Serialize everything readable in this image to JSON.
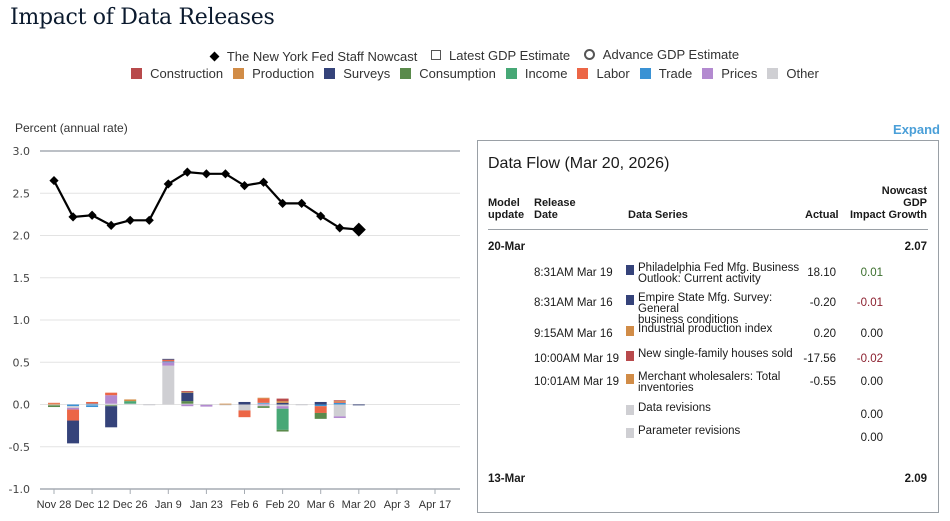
{
  "page": {
    "title": "Impact of Data Releases",
    "expand_label": "Expand"
  },
  "legend": {
    "markers": [
      {
        "label": "The New York Fed Staff Nowcast",
        "icon": "diamond-icon"
      },
      {
        "label": "Latest GDP Estimate",
        "icon": "square-outline-icon"
      },
      {
        "label": "Advance GDP Estimate",
        "icon": "circle-outline-icon"
      }
    ],
    "categories": [
      {
        "label": "Construction",
        "color": "#b84a4c"
      },
      {
        "label": "Production",
        "color": "#d18c47"
      },
      {
        "label": "Surveys",
        "color": "#35437a"
      },
      {
        "label": "Consumption",
        "color": "#5a8a4b"
      },
      {
        "label": "Income",
        "color": "#47a876"
      },
      {
        "label": "Labor",
        "color": "#ec6646"
      },
      {
        "label": "Trade",
        "color": "#3a92d4"
      },
      {
        "label": "Prices",
        "color": "#b38ad0"
      },
      {
        "label": "Other",
        "color": "#cfcfd3"
      }
    ]
  },
  "chart_data": {
    "type": "bar",
    "title": "Impact of Data Releases",
    "ylabel": "Percent (annual rate)",
    "xlabel": "",
    "ylim": [
      -1.0,
      3.0
    ],
    "yticks": [
      "3.0",
      "2.5",
      "2.0",
      "1.5",
      "1.0",
      "0.5",
      "0.0",
      "-0.5",
      "-1.0"
    ],
    "ytick_values": [
      3.0,
      2.5,
      2.0,
      1.5,
      1.0,
      0.5,
      0.0,
      -0.5,
      -1.0
    ],
    "grid": true,
    "xticks": [
      "Nov 28",
      "Dec 12",
      "Dec 26",
      "Jan 9",
      "Jan 23",
      "Feb 6",
      "Feb 20",
      "Mar 6",
      "Mar 20",
      "Apr 3",
      "Apr 17"
    ],
    "weeks": [
      "Nov 28",
      "Dec 5",
      "Dec 12",
      "Dec 19",
      "Dec 26",
      "Jan 2",
      "Jan 9",
      "Jan 16",
      "Jan 23",
      "Jan 30",
      "Feb 6",
      "Feb 13",
      "Feb 20",
      "Feb 27",
      "Mar 6",
      "Mar 13",
      "Mar 20",
      "Mar 27",
      "Apr 3",
      "Apr 10",
      "Apr 17"
    ],
    "nowcast": {
      "name": "The New York Fed Staff Nowcast",
      "values": [
        2.65,
        2.22,
        2.24,
        2.12,
        2.18,
        2.18,
        2.61,
        2.75,
        2.73,
        2.73,
        2.59,
        2.63,
        2.38,
        2.38,
        2.23,
        2.09,
        2.07
      ]
    },
    "stacks": [
      {
        "week": "Nov 28",
        "pos": [
          [
            "Production",
            0.01
          ],
          [
            "Labor",
            0.01
          ]
        ],
        "neg": [
          [
            "Other",
            -0.01
          ],
          [
            "Consumption",
            -0.02
          ]
        ]
      },
      {
        "week": "Dec 5",
        "pos": [],
        "neg": [
          [
            "Trade",
            -0.02
          ],
          [
            "Other",
            -0.02
          ],
          [
            "Prices",
            -0.02
          ],
          [
            "Labor",
            -0.13
          ],
          [
            "Surveys",
            -0.27
          ]
        ]
      },
      {
        "week": "Dec 12",
        "pos": [
          [
            "Trade",
            0.01
          ],
          [
            "Labor",
            0.02
          ]
        ],
        "neg": [
          [
            "Other",
            -0.01
          ],
          [
            "Trade",
            -0.02
          ]
        ]
      },
      {
        "week": "Dec 19",
        "pos": [
          [
            "Other",
            0.01
          ],
          [
            "Prices",
            0.1
          ],
          [
            "Labor",
            0.03
          ]
        ],
        "neg": [
          [
            "Other",
            -0.01
          ],
          [
            "Consumption",
            -0.01
          ],
          [
            "Surveys",
            -0.25
          ]
        ]
      },
      {
        "week": "Dec 26",
        "pos": [
          [
            "Other",
            0.01
          ],
          [
            "Income",
            0.03
          ],
          [
            "Production",
            0.02
          ]
        ],
        "neg": []
      },
      {
        "week": "Jan 2",
        "pos": [
          [
            "Other",
            0.005
          ]
        ],
        "neg": [
          [
            "Other",
            -0.005
          ]
        ]
      },
      {
        "week": "Jan 9",
        "pos": [
          [
            "Other",
            0.46
          ],
          [
            "Prices",
            0.04
          ],
          [
            "Trade",
            0.01
          ],
          [
            "Labor",
            0.02
          ],
          [
            "Surveys",
            0.01
          ]
        ],
        "neg": []
      },
      {
        "week": "Jan 16",
        "pos": [
          [
            "Other",
            0.01
          ],
          [
            "Consumption",
            0.03
          ],
          [
            "Surveys",
            0.1
          ],
          [
            "Production",
            0.01
          ],
          [
            "Construction",
            0.01
          ]
        ],
        "neg": [
          [
            "Prices",
            -0.02
          ]
        ]
      },
      {
        "week": "Jan 23",
        "pos": [
          [
            "Other",
            0.005
          ]
        ],
        "neg": [
          [
            "Other",
            -0.005
          ],
          [
            "Prices",
            -0.02
          ]
        ]
      },
      {
        "week": "Jan 30",
        "pos": [
          [
            "Production",
            0.01
          ]
        ],
        "neg": [
          [
            "Other",
            -0.01
          ]
        ]
      },
      {
        "week": "Feb 6",
        "pos": [
          [
            "Surveys",
            0.03
          ]
        ],
        "neg": [
          [
            "Other",
            -0.07
          ],
          [
            "Labor",
            -0.08
          ]
        ]
      },
      {
        "week": "Feb 13",
        "pos": [
          [
            "Other",
            0.01
          ],
          [
            "Trade",
            0.01
          ],
          [
            "Labor",
            0.05
          ],
          [
            "Production",
            0.01
          ]
        ],
        "neg": [
          [
            "Prices",
            -0.01
          ],
          [
            "Other",
            -0.01
          ],
          [
            "Consumption",
            -0.02
          ]
        ]
      },
      {
        "week": "Feb 20",
        "pos": [
          [
            "Surveys",
            0.02
          ],
          [
            "Production",
            0.02
          ],
          [
            "Construction",
            0.03
          ]
        ],
        "neg": [
          [
            "Other",
            -0.02
          ],
          [
            "Prices",
            -0.03
          ],
          [
            "Income",
            -0.25
          ],
          [
            "Consumption",
            -0.02
          ]
        ]
      },
      {
        "week": "Feb 27",
        "pos": [
          [
            "Other",
            0.005
          ]
        ],
        "neg": [
          [
            "Other",
            -0.005
          ]
        ]
      },
      {
        "week": "Mar 6",
        "pos": [
          [
            "Surveys",
            0.03
          ]
        ],
        "neg": [
          [
            "Trade",
            -0.02
          ],
          [
            "Labor",
            -0.08
          ],
          [
            "Consumption",
            -0.07
          ]
        ]
      },
      {
        "week": "Mar 13",
        "pos": [
          [
            "Trade",
            0.02
          ],
          [
            "Labor",
            0.01
          ],
          [
            "Production",
            0.01
          ],
          [
            "Construction",
            0.01
          ]
        ],
        "neg": [
          [
            "Other",
            -0.14
          ],
          [
            "Prices",
            -0.02
          ]
        ]
      },
      {
        "week": "Mar 20",
        "pos": [
          [
            "Other",
            0.005
          ]
        ],
        "neg": [
          [
            "Surveys",
            -0.01
          ]
        ]
      }
    ]
  },
  "data_flow": {
    "title": "Data Flow (Mar 20, 2026)",
    "headers": {
      "model_update": [
        "Model",
        "update"
      ],
      "release_date": [
        "Release",
        "Date"
      ],
      "data_series": "Data Series",
      "actual": "Actual",
      "impact": "Impact",
      "nowcast": [
        "Nowcast",
        "GDP",
        "Growth"
      ]
    },
    "groups": [
      {
        "model_update": "20-Mar",
        "nowcast": "2.07",
        "rows": [
          {
            "release_date": "8:31AM Mar 19",
            "series": [
              "Philadelphia Fed Mfg. Business",
              "Outlook: Current activity"
            ],
            "category_color": "#35437a",
            "actual": "18.10",
            "impact": "0.01",
            "impact_sign": "pos"
          },
          {
            "release_date": "8:31AM Mar 16",
            "series": [
              "Empire State Mfg. Survey: General",
              "business conditions"
            ],
            "category_color": "#35437a",
            "actual": "-0.20",
            "impact": "-0.01",
            "impact_sign": "neg"
          },
          {
            "release_date": "9:15AM Mar 16",
            "series": [
              "Industrial production index"
            ],
            "category_color": "#d18c47",
            "actual": "0.20",
            "impact": "0.00",
            "impact_sign": "zero"
          },
          {
            "release_date": "10:00AM Mar 19",
            "series": [
              "New single-family houses sold"
            ],
            "category_color": "#b84a4c",
            "actual": "-17.56",
            "impact": "-0.02",
            "impact_sign": "neg"
          },
          {
            "release_date": "10:01AM Mar 19",
            "series": [
              "Merchant wholesalers: Total",
              "inventories"
            ],
            "category_color": "#d18c47",
            "actual": "-0.55",
            "impact": "0.00",
            "impact_sign": "zero"
          },
          {
            "release_date": "",
            "series": [
              "Data revisions"
            ],
            "category_color": "#cfcfd3",
            "actual": "",
            "impact": "0.00",
            "impact_sign": "zero"
          },
          {
            "release_date": "",
            "series": [
              "Parameter revisions"
            ],
            "category_color": "#cfcfd3",
            "actual": "",
            "impact": "0.00",
            "impact_sign": "zero"
          }
        ]
      },
      {
        "model_update": "13-Mar",
        "nowcast": "2.09",
        "rows": []
      }
    ]
  }
}
